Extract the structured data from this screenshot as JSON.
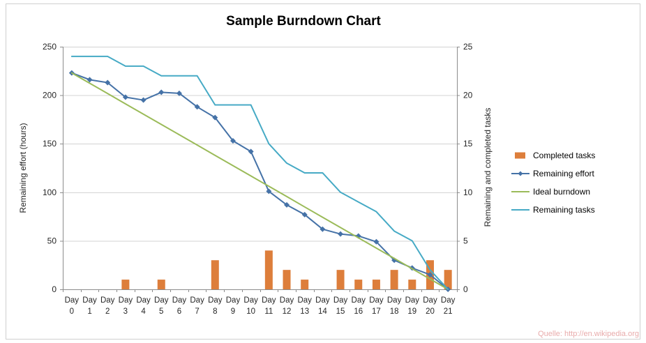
{
  "chart": {
    "title": "Sample Burndown Chart",
    "left_axis": {
      "title": "Remaining effort (hours)",
      "max": 250,
      "ticks": [
        0,
        50,
        100,
        150,
        200,
        250
      ]
    },
    "right_axis": {
      "title": "Remaining and completed tasks",
      "max": 25,
      "ticks": [
        0,
        5,
        10,
        15,
        20,
        25
      ]
    }
  },
  "watermark": "Quelle: http://en.wikipedia.org",
  "chart_data": {
    "type": "combo",
    "grid": "horizontal",
    "legend_position": "right",
    "categories": [
      "Day 0",
      "Day 1",
      "Day 2",
      "Day 3",
      "Day 4",
      "Day 5",
      "Day 6",
      "Day 7",
      "Day 8",
      "Day 9",
      "Day 10",
      "Day 11",
      "Day 12",
      "Day 13",
      "Day 14",
      "Day 15",
      "Day 16",
      "Day 17",
      "Day 18",
      "Day 19",
      "Day 20",
      "Day 21"
    ],
    "ylim_left": [
      0,
      250
    ],
    "ylim_right": [
      0,
      25
    ],
    "series": [
      {
        "name": "Completed tasks",
        "type": "bar",
        "axis": "right",
        "color": "#dd7e3b",
        "values": [
          0,
          0,
          0,
          1,
          0,
          1,
          0,
          0,
          3,
          0,
          0,
          4,
          2,
          1,
          0,
          2,
          1,
          1,
          2,
          1,
          3,
          2
        ]
      },
      {
        "name": "Remaining effort",
        "type": "line",
        "marker": "diamond",
        "axis": "left",
        "color": "#4572a7",
        "values": [
          223,
          216,
          213,
          198,
          195,
          203,
          202,
          188,
          177,
          153,
          142,
          101,
          87,
          77,
          62,
          57,
          55,
          49,
          30,
          22,
          15,
          0
        ]
      },
      {
        "name": "Ideal burndown",
        "type": "line",
        "axis": "left",
        "color": "#9bbb59",
        "values": [
          223,
          212.4,
          201.8,
          191.1,
          180.5,
          169.9,
          159.3,
          148.7,
          138,
          127.4,
          116.8,
          106.2,
          95.6,
          84.9,
          74.3,
          63.7,
          53.1,
          42.5,
          31.9,
          21.2,
          10.6,
          0
        ]
      },
      {
        "name": "Remaining tasks",
        "type": "line",
        "axis": "right",
        "color": "#46aac5",
        "values": [
          24,
          24,
          24,
          23,
          23,
          22,
          22,
          22,
          19,
          19,
          19,
          15,
          13,
          12,
          12,
          10,
          9,
          8,
          6,
          5,
          2,
          0
        ]
      }
    ]
  }
}
